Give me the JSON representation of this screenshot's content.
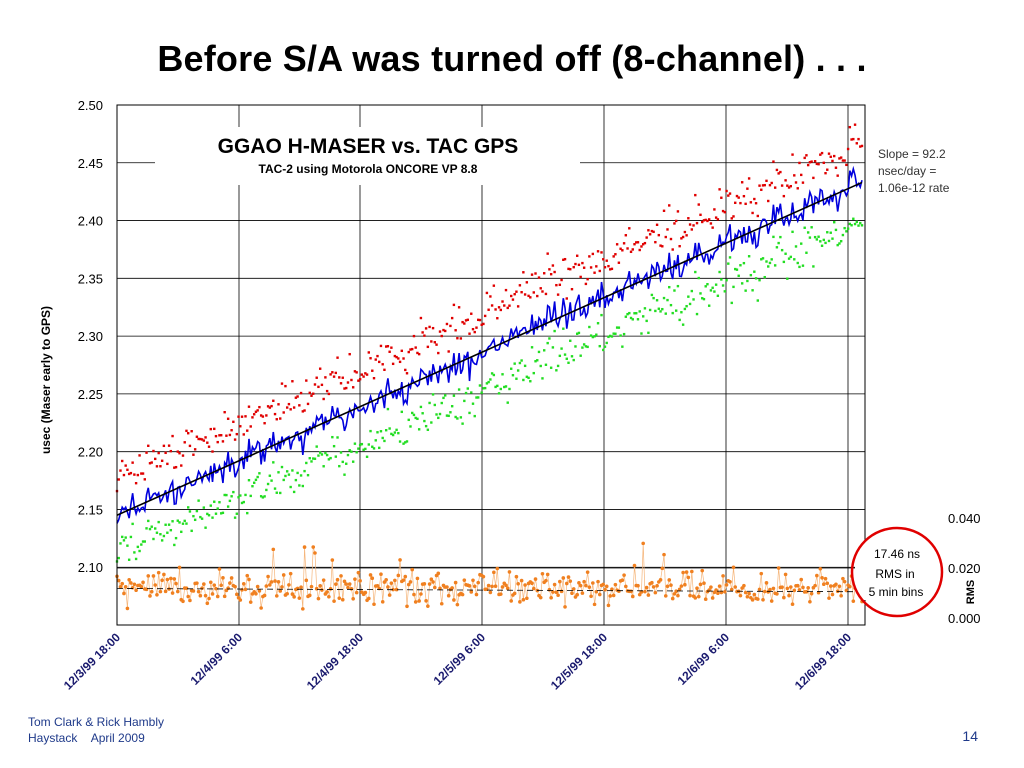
{
  "slide": {
    "title": "Before S/A was turned off (8-channel) . . .",
    "footer_line1": "Tom Clark & Rick Hambly",
    "footer_org": "Haystack",
    "footer_date": "April 2009",
    "page_number": "14"
  },
  "chart_data": {
    "type": "scatter",
    "title": "GGAO H-MASER vs. TAC GPS",
    "subtitle": "TAC-2 using Motorola ONCORE VP 8.8",
    "ylabel": "usec (Maser early to GPS)",
    "y2label": "RMS",
    "ylim": [
      2.05,
      2.5
    ],
    "yticks": [
      "2.50",
      "2.45",
      "2.40",
      "2.35",
      "2.30",
      "2.25",
      "2.20",
      "2.15",
      "2.10"
    ],
    "y2lim": [
      0.0,
      0.045
    ],
    "y2ticks": [
      "0.040",
      "0.020",
      "0.000"
    ],
    "xticks": [
      "12/3/99 18:00",
      "12/4/99 6:00",
      "12/4/99 18:00",
      "12/5/99 6:00",
      "12/5/99 18:00",
      "12/6/99 6:00",
      "12/6/99 18:00"
    ],
    "grid": true,
    "slope_annotation": [
      "Slope = 92.2",
      "nsec/day =",
      "1.06e-12 rate"
    ],
    "rms_annotation": [
      "17.46 ns",
      "RMS in",
      "5 min bins"
    ],
    "trend": {
      "start": 2.145,
      "end": 2.433
    },
    "series": [
      {
        "color": "#0000dd",
        "values_summary": "5-min mean offset, rising from 2.145 to 2.433 usec"
      },
      {
        "color": "#e00000",
        "values_summary": "maximum, about +0.04 usec above mean"
      },
      {
        "color": "#22dd22",
        "values_summary": "minimum, about -0.04 usec below mean"
      },
      {
        "color": "#f08020",
        "values_summary": "RMS, about 0.01 to 0.04 usec on right axis"
      }
    ],
    "colors": {
      "mean": "#0000dd",
      "max": "#e00000",
      "min": "#22dd22",
      "rms": "#f08020",
      "trend": "#000000",
      "circle": "#e00000"
    }
  }
}
